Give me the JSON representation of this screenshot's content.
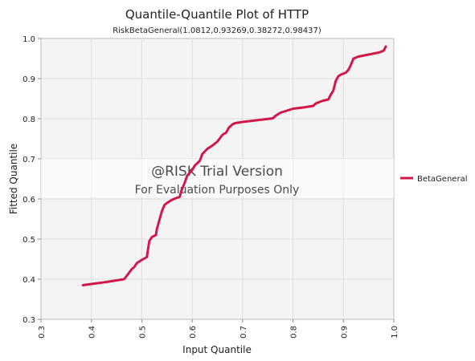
{
  "chart_data": {
    "type": "line",
    "title": "Quantile-Quantile Plot of HTTP",
    "subtitle": "RiskBetaGeneral(1.0812,0.93269,0.38272,0.98437)",
    "xlabel": "Input Quantile",
    "ylabel": "Fitted Quantile",
    "xlim": [
      0.3,
      1.0
    ],
    "ylim": [
      0.3,
      1.0
    ],
    "x_ticks": [
      "0.3",
      "0.4",
      "0.5",
      "0.6",
      "0.7",
      "0.8",
      "0.9",
      "1.0"
    ],
    "y_ticks": [
      "0.3",
      "0.4",
      "0.5",
      "0.6",
      "0.7",
      "0.8",
      "0.9",
      "1.0"
    ],
    "grid": true,
    "legend_position": "right",
    "series": [
      {
        "name": "BetaGeneral",
        "color": "#d0184a",
        "x": [
          0.383,
          0.4,
          0.43,
          0.465,
          0.47,
          0.48,
          0.485,
          0.49,
          0.5,
          0.51,
          0.513,
          0.515,
          0.52,
          0.528,
          0.53,
          0.535,
          0.54,
          0.545,
          0.55,
          0.56,
          0.57,
          0.575,
          0.578,
          0.585,
          0.59,
          0.6,
          0.605,
          0.615,
          0.62,
          0.63,
          0.64,
          0.65,
          0.66,
          0.667,
          0.673,
          0.68,
          0.685,
          0.69,
          0.7,
          0.72,
          0.74,
          0.76,
          0.765,
          0.775,
          0.79,
          0.8,
          0.82,
          0.84,
          0.845,
          0.855,
          0.86,
          0.87,
          0.875,
          0.88,
          0.885,
          0.89,
          0.895,
          0.905,
          0.91,
          0.915,
          0.92,
          0.93,
          0.95,
          0.97,
          0.975,
          0.98,
          0.984
        ],
        "y": [
          0.385,
          0.388,
          0.393,
          0.4,
          0.408,
          0.425,
          0.43,
          0.44,
          0.448,
          0.455,
          0.48,
          0.495,
          0.505,
          0.51,
          0.525,
          0.548,
          0.57,
          0.585,
          0.59,
          0.598,
          0.603,
          0.605,
          0.618,
          0.64,
          0.658,
          0.672,
          0.683,
          0.695,
          0.712,
          0.725,
          0.733,
          0.743,
          0.76,
          0.765,
          0.778,
          0.786,
          0.789,
          0.79,
          0.792,
          0.795,
          0.798,
          0.801,
          0.807,
          0.815,
          0.821,
          0.825,
          0.828,
          0.832,
          0.838,
          0.843,
          0.845,
          0.848,
          0.86,
          0.87,
          0.895,
          0.906,
          0.91,
          0.915,
          0.922,
          0.935,
          0.95,
          0.955,
          0.96,
          0.965,
          0.967,
          0.97,
          0.98
        ]
      }
    ]
  },
  "watermark": {
    "line1": "@RISK Trial Version",
    "line2": "For Evaluation Purposes Only"
  }
}
